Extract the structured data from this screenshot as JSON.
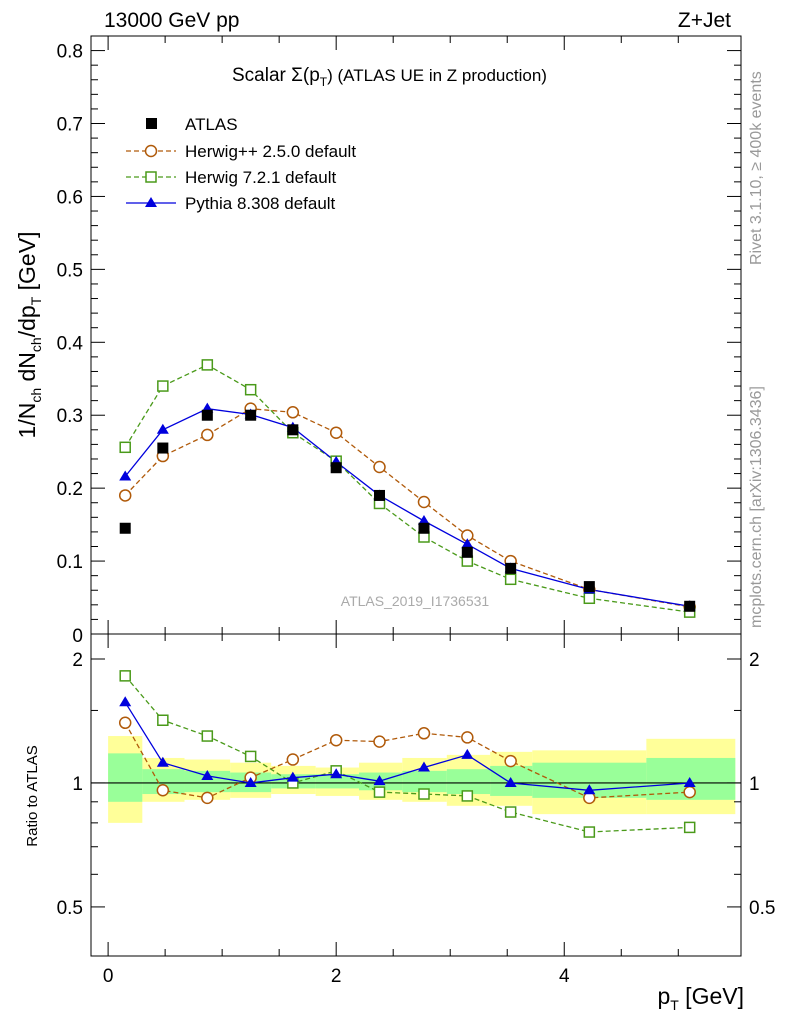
{
  "header": {
    "left_label": "13000 GeV pp",
    "right_label": "Z+Jet"
  },
  "side_labels": {
    "rivet": "Rivet 3.1.10, ≥ 400k events",
    "mcplots": "mcplots.cern.ch [arXiv:1306.3436]"
  },
  "analysis_id": "ATLAS_2019_I1736531",
  "colors": {
    "atlas": "#000000",
    "herwigpp": "#b05a0a",
    "herwig7": "#4a9a1a",
    "pythia": "#0000dd",
    "band_outer": "#ffff99",
    "band_inner": "#99ff99"
  },
  "chart_data": [
    {
      "type": "scatter",
      "panel": "main",
      "title": "Scalar Σ(p_T) (ATLAS UE in Z production)",
      "title_parts": {
        "prefix": "Scalar ",
        "sigma": "Σ(p",
        "sub": "T",
        "suffix": ") (ATLAS UE in Z production)"
      },
      "ylabel": "1/N_ch dN_ch/dp_T [GeV]",
      "ylabel_parts": {
        "a": "1/N",
        "a_sub": "ch",
        "b": " dN",
        "b_sub": "ch",
        "c": "/dp",
        "c_sub": "T",
        "d": " [GeV]"
      },
      "xlim": [
        -0.15,
        5.55
      ],
      "ylim": [
        0,
        0.82
      ],
      "yticks": [
        0.1,
        0.2,
        0.3,
        0.4,
        0.5,
        0.6,
        0.7,
        0.8
      ],
      "ytick_labels": [
        "0.1",
        "0.2",
        "0.3",
        "0.4",
        "0.5",
        "0.6",
        "0.7",
        "0.8"
      ],
      "zero_label": "0",
      "legend_position": "top-left",
      "series": [
        {
          "name": "ATLAS",
          "style": "data",
          "x": [
            0.15,
            0.48,
            0.87,
            1.25,
            1.62,
            2.0,
            2.38,
            2.77,
            3.15,
            3.53,
            4.22,
            5.1
          ],
          "values": [
            0.145,
            0.255,
            0.3,
            0.3,
            0.28,
            0.228,
            0.19,
            0.145,
            0.112,
            0.09,
            0.065,
            0.038
          ]
        },
        {
          "name": "Herwig++ 2.5.0 default",
          "style": "herwigpp",
          "x": [
            0.15,
            0.48,
            0.87,
            1.25,
            1.62,
            2.0,
            2.38,
            2.77,
            3.15,
            3.53,
            4.22,
            5.1
          ],
          "values": [
            0.19,
            0.244,
            0.273,
            0.309,
            0.304,
            0.276,
            0.229,
            0.181,
            0.135,
            0.1,
            0.061,
            0.037
          ]
        },
        {
          "name": "Herwig 7.2.1 default",
          "style": "herwig7",
          "x": [
            0.15,
            0.48,
            0.87,
            1.25,
            1.62,
            2.0,
            2.38,
            2.77,
            3.15,
            3.53,
            4.22,
            5.1
          ],
          "values": [
            0.256,
            0.34,
            0.369,
            0.335,
            0.276,
            0.237,
            0.179,
            0.133,
            0.1,
            0.075,
            0.049,
            0.03
          ]
        },
        {
          "name": "Pythia 8.308 default",
          "style": "pythia",
          "x": [
            0.15,
            0.48,
            0.87,
            1.25,
            1.62,
            2.0,
            2.38,
            2.77,
            3.15,
            3.53,
            4.22,
            5.1
          ],
          "values": [
            0.216,
            0.28,
            0.309,
            0.301,
            0.283,
            0.236,
            0.19,
            0.155,
            0.123,
            0.09,
            0.061,
            0.038
          ]
        }
      ]
    },
    {
      "type": "scatter",
      "panel": "ratio",
      "ylabel": "Ratio to ATLAS",
      "xlabel": "p_T [GeV]",
      "xlabel_parts": {
        "a": "p",
        "a_sub": "T",
        "b": " [GeV]"
      },
      "xlim": [
        -0.15,
        5.55
      ],
      "ylim": [
        0.38,
        2.3
      ],
      "log_y": true,
      "yticks": [
        0.5,
        1,
        2
      ],
      "ytick_labels": [
        "0.5",
        "1",
        "2"
      ],
      "xticks": [
        0,
        2,
        4
      ],
      "xtick_labels": [
        "0",
        "2",
        "4"
      ],
      "bands": {
        "edges": [
          0.0,
          0.3,
          0.67,
          1.07,
          1.43,
          1.82,
          2.2,
          2.58,
          2.97,
          3.35,
          3.72,
          4.72,
          5.5
        ],
        "outer_lo": [
          0.8,
          0.9,
          0.91,
          0.92,
          0.94,
          0.93,
          0.91,
          0.9,
          0.88,
          0.88,
          0.84,
          0.84
        ],
        "outer_hi": [
          1.3,
          1.15,
          1.14,
          1.12,
          1.1,
          1.09,
          1.12,
          1.15,
          1.17,
          1.19,
          1.2,
          1.28
        ],
        "inner_lo": [
          0.9,
          0.94,
          0.95,
          0.95,
          0.97,
          0.97,
          0.96,
          0.95,
          0.94,
          0.93,
          0.92,
          0.91
        ],
        "inner_hi": [
          1.18,
          1.08,
          1.07,
          1.06,
          1.05,
          1.05,
          1.06,
          1.07,
          1.08,
          1.1,
          1.12,
          1.15
        ]
      },
      "series": [
        {
          "name": "Herwig++ 2.5.0 default",
          "style": "herwigpp",
          "x": [
            0.15,
            0.48,
            0.87,
            1.25,
            1.62,
            2.0,
            2.38,
            2.77,
            3.15,
            3.53,
            4.22,
            5.1
          ],
          "values": [
            1.4,
            0.96,
            0.92,
            1.03,
            1.14,
            1.27,
            1.26,
            1.32,
            1.29,
            1.13,
            0.92,
            0.95
          ]
        },
        {
          "name": "Herwig 7.2.1 default",
          "style": "herwig7",
          "x": [
            0.15,
            0.48,
            0.87,
            1.25,
            1.62,
            2.0,
            2.38,
            2.77,
            3.15,
            3.53,
            4.22,
            5.1
          ],
          "values": [
            1.82,
            1.42,
            1.3,
            1.16,
            1.0,
            1.07,
            0.95,
            0.94,
            0.93,
            0.85,
            0.76,
            0.78
          ]
        },
        {
          "name": "Pythia 8.308 default",
          "style": "pythia",
          "x": [
            0.15,
            0.48,
            0.87,
            1.25,
            1.62,
            2.0,
            2.38,
            2.77,
            3.15,
            3.53,
            4.22,
            5.1
          ],
          "values": [
            1.57,
            1.12,
            1.04,
            1.0,
            1.03,
            1.05,
            1.01,
            1.09,
            1.17,
            1.0,
            0.96,
            1.0
          ]
        }
      ]
    }
  ]
}
